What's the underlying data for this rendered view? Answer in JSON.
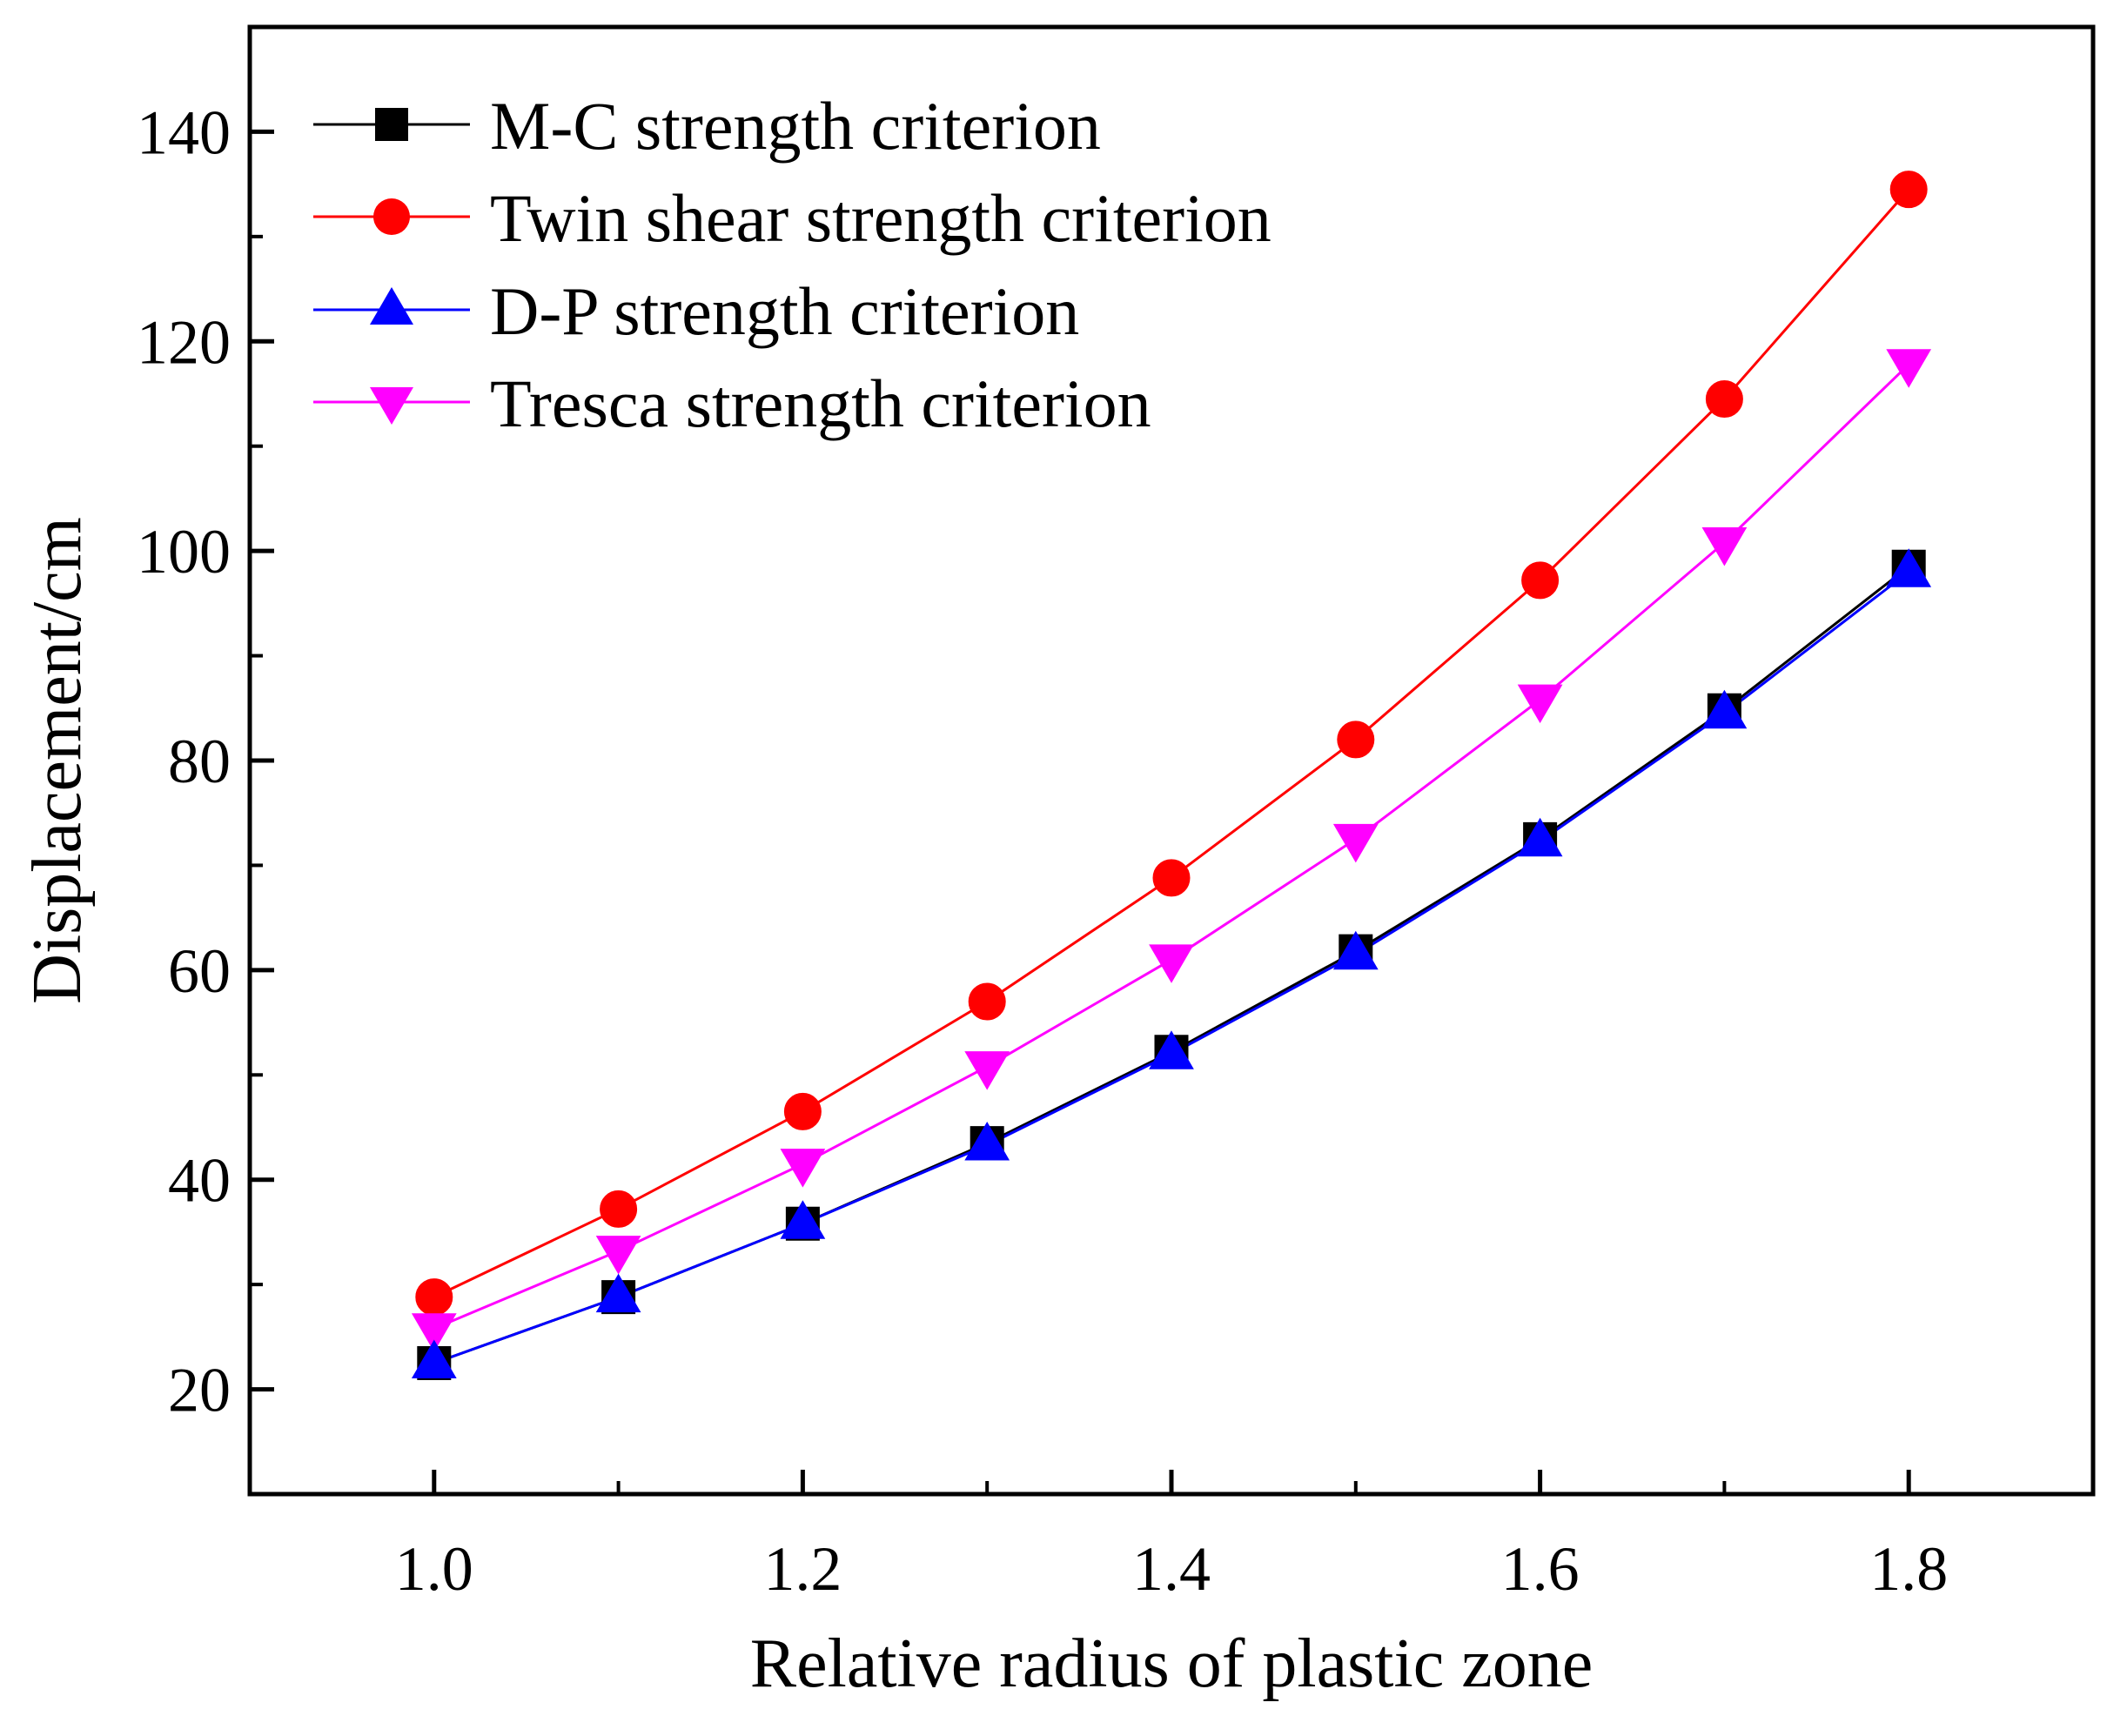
{
  "chart_data": {
    "type": "line",
    "title": "",
    "xlabel": "Relative radius of plastic zone",
    "ylabel": "Displacement/cm",
    "xlim": [
      0.9,
      1.9
    ],
    "ylim": [
      10,
      150
    ],
    "xticks": [
      1.0,
      1.2,
      1.4,
      1.6,
      1.8
    ],
    "xtick_labels": [
      "1.0",
      "1.2",
      "1.4",
      "1.6",
      "1.8"
    ],
    "yticks": [
      20,
      40,
      60,
      80,
      100,
      120,
      140
    ],
    "ytick_labels": [
      "20",
      "40",
      "60",
      "80",
      "100",
      "120",
      "140"
    ],
    "grid": false,
    "legend_position": "top-left",
    "x": [
      1.0,
      1.1,
      1.2,
      1.3,
      1.4,
      1.5,
      1.6,
      1.7,
      1.8
    ],
    "series": [
      {
        "name": "M-C strength criterion",
        "color": "#000000",
        "marker": "square",
        "values": [
          22.5,
          28.8,
          35.8,
          43.5,
          52.2,
          61.8,
          72.5,
          84.8,
          98.5
        ]
      },
      {
        "name": "Twin shear strength criterion",
        "color": "#ff0000",
        "marker": "circle",
        "values": [
          28.8,
          37.2,
          46.5,
          57.0,
          68.8,
          82.0,
          97.2,
          114.5,
          134.5
        ]
      },
      {
        "name": "D-P strength criterion",
        "color": "#0000ff",
        "marker": "triangle-up",
        "values": [
          22.5,
          28.8,
          35.8,
          43.3,
          52.0,
          61.5,
          72.3,
          84.5,
          98.0
        ]
      },
      {
        "name": "Tresca strength criterion",
        "color": "#ff00ff",
        "marker": "triangle-down",
        "values": [
          25.8,
          33.2,
          41.5,
          50.8,
          61.0,
          72.5,
          85.8,
          100.8,
          117.8
        ]
      }
    ]
  }
}
